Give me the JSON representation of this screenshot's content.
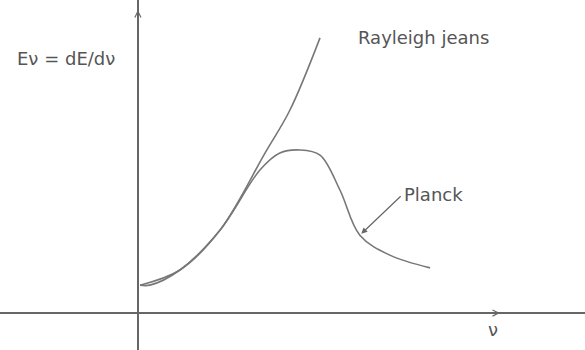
{
  "chart_data": {
    "type": "line",
    "x_label": "ν",
    "y_label": "Eν = dE/dν",
    "xlim": [
      -3.81,
      12.35
    ],
    "ylim": [
      -1.22,
      10.33
    ],
    "tick_labels": false,
    "grid": false,
    "series": [
      {
        "name": "Planck",
        "color": "#777777",
        "x": [
          0.06,
          0.33,
          1.16,
          2.27,
          3.37,
          3.92,
          4.48,
          5.03,
          5.58,
          6.13,
          6.96,
          8.07
        ],
        "values": [
          0.92,
          0.92,
          1.42,
          2.74,
          4.72,
          5.28,
          5.38,
          5.21,
          4.06,
          2.57,
          1.91,
          1.49
        ]
      },
      {
        "name": "Rayleigh jeans",
        "color": "#777777",
        "x": [
          0.06,
          1.16,
          2.27,
          3.51,
          4.2,
          5.03
        ],
        "values": [
          0.92,
          1.42,
          2.74,
          5.28,
          6.7,
          9.08
        ]
      }
    ],
    "annotations": [
      {
        "text": "Rayleigh jeans",
        "x": 7.9,
        "y": 9.1
      },
      {
        "text": "Planck",
        "x": 7.3,
        "y": 3.9,
        "arrow_x": 6.13,
        "arrow_y": 2.57
      }
    ]
  }
}
